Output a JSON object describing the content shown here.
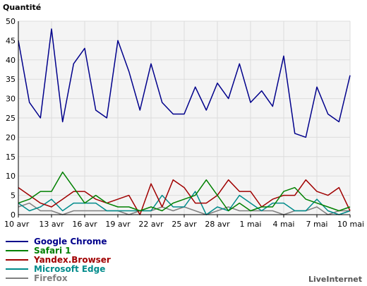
{
  "chart_data": {
    "type": "line",
    "title": "Quantité",
    "ylim": [
      0,
      50
    ],
    "y_ticks": [
      0,
      5,
      10,
      15,
      20,
      25,
      30,
      35,
      40,
      45,
      50
    ],
    "x_tick_labels": [
      "10 avr",
      "13 avr",
      "16 avr",
      "19 avr",
      "22 avr",
      "25 avr",
      "28 avr",
      "1 mai",
      "4 mai",
      "7 mai",
      "10 mai"
    ],
    "x": [
      "10 avr",
      "11 avr",
      "12 avr",
      "13 avr",
      "14 avr",
      "15 avr",
      "16 avr",
      "17 avr",
      "18 avr",
      "19 avr",
      "20 avr",
      "21 avr",
      "22 avr",
      "23 avr",
      "24 avr",
      "25 avr",
      "26 avr",
      "27 avr",
      "28 avr",
      "29 avr",
      "30 avr",
      "1 mai",
      "2 mai",
      "3 mai",
      "4 mai",
      "5 mai",
      "6 mai",
      "7 mai",
      "8 mai",
      "9 mai",
      "10 mai"
    ],
    "grid": true,
    "legend_position": "bottom-left",
    "series": [
      {
        "name": "Google Chrome",
        "color": "#00008b",
        "values": [
          45,
          29,
          25,
          48,
          24,
          39,
          43,
          27,
          25,
          45,
          37,
          27,
          39,
          29,
          26,
          26,
          33,
          27,
          34,
          30,
          39,
          29,
          32,
          28,
          41,
          21,
          20,
          33,
          26,
          24,
          36
        ]
      },
      {
        "name": "Safari 1",
        "color": "#008000",
        "values": [
          3,
          4,
          6,
          6,
          11,
          7,
          3,
          5,
          3,
          2,
          2,
          1,
          2,
          1,
          3,
          4,
          5,
          9,
          5,
          1,
          3,
          1,
          2,
          2,
          6,
          7,
          4,
          3,
          2,
          1,
          2
        ]
      },
      {
        "name": "Yandex.Browser",
        "color": "#a00000",
        "values": [
          7,
          5,
          3,
          2,
          4,
          6,
          6,
          4,
          3,
          4,
          5,
          0,
          8,
          2,
          9,
          7,
          3,
          3,
          5,
          9,
          6,
          6,
          2,
          4,
          5,
          5,
          9,
          6,
          5,
          7,
          1
        ]
      },
      {
        "name": "Microsoft Edge",
        "color": "#008b8b",
        "values": [
          3,
          1,
          2,
          4,
          1,
          3,
          3,
          3,
          1,
          1,
          1,
          1,
          1,
          5,
          2,
          2,
          6,
          0,
          2,
          1,
          5,
          3,
          1,
          3,
          3,
          1,
          1,
          4,
          1,
          0,
          1
        ]
      },
      {
        "name": "Firefox",
        "color": "#808080",
        "values": [
          2,
          3,
          1,
          1,
          0,
          1,
          1,
          1,
          1,
          1,
          0,
          1,
          1,
          2,
          1,
          2,
          1,
          0,
          1,
          2,
          1,
          1,
          1,
          1,
          0,
          1,
          1,
          2,
          0,
          1,
          1
        ]
      }
    ]
  },
  "footer": {
    "brand": "LiveInternet"
  }
}
